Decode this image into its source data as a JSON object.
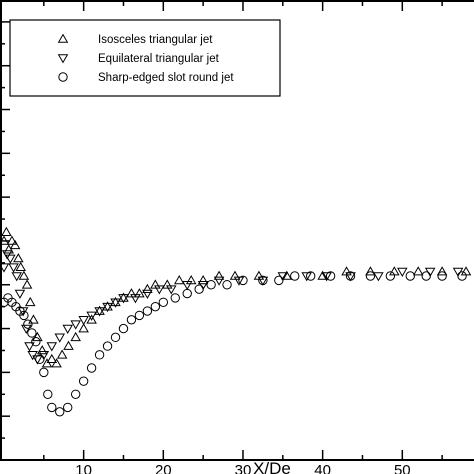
{
  "chart_data": {
    "type": "scatter",
    "title": "",
    "xlabel": "X/De",
    "ylabel": "",
    "xlim": [
      -0.5,
      59
    ],
    "ylim": [
      0,
      1.05
    ],
    "x_ticks": [
      10,
      20,
      30,
      40,
      50
    ],
    "grid": false,
    "legend_position": "top-left",
    "series": [
      {
        "name": "Isosceles triangular jet",
        "marker": "triangle-up",
        "points": [
          [
            0.0,
            0.5
          ],
          [
            0.3,
            0.52
          ],
          [
            0.6,
            0.48
          ],
          [
            1.0,
            0.5
          ],
          [
            1.4,
            0.49
          ],
          [
            1.8,
            0.46
          ],
          [
            2.1,
            0.44
          ],
          [
            2.5,
            0.42
          ],
          [
            2.9,
            0.4
          ],
          [
            3.3,
            0.36
          ],
          [
            3.7,
            0.32
          ],
          [
            4.2,
            0.28
          ],
          [
            4.8,
            0.25
          ],
          [
            5.4,
            0.22
          ],
          [
            6.0,
            0.23
          ],
          [
            6.6,
            0.22
          ],
          [
            7.3,
            0.24
          ],
          [
            8.1,
            0.26
          ],
          [
            9.0,
            0.28
          ],
          [
            10.0,
            0.3
          ],
          [
            11.0,
            0.32
          ],
          [
            12.0,
            0.34
          ],
          [
            13.0,
            0.35
          ],
          [
            14.0,
            0.36
          ],
          [
            15.0,
            0.37
          ],
          [
            16.0,
            0.38
          ],
          [
            17.0,
            0.38
          ],
          [
            18.0,
            0.39
          ],
          [
            19.0,
            0.4
          ],
          [
            20.5,
            0.4
          ],
          [
            22.0,
            0.41
          ],
          [
            23.5,
            0.41
          ],
          [
            25.0,
            0.41
          ],
          [
            27.0,
            0.42
          ],
          [
            29.0,
            0.42
          ],
          [
            32.0,
            0.42
          ],
          [
            35.5,
            0.42
          ],
          [
            40.0,
            0.42
          ],
          [
            43.0,
            0.43
          ],
          [
            46.0,
            0.43
          ],
          [
            49.0,
            0.43
          ],
          [
            52.0,
            0.43
          ],
          [
            55.0,
            0.43
          ],
          [
            58.0,
            0.43
          ]
        ]
      },
      {
        "name": "Equilateral triangular jet",
        "marker": "triangle-down",
        "points": [
          [
            0.0,
            0.44
          ],
          [
            0.4,
            0.47
          ],
          [
            0.8,
            0.46
          ],
          [
            1.2,
            0.44
          ],
          [
            1.6,
            0.42
          ],
          [
            2.0,
            0.38
          ],
          [
            2.4,
            0.34
          ],
          [
            2.8,
            0.3
          ],
          [
            3.2,
            0.26
          ],
          [
            3.6,
            0.24
          ],
          [
            4.2,
            0.23
          ],
          [
            5.0,
            0.24
          ],
          [
            6.0,
            0.26
          ],
          [
            7.0,
            0.28
          ],
          [
            8.0,
            0.3
          ],
          [
            9.0,
            0.31
          ],
          [
            10.0,
            0.32
          ],
          [
            11.0,
            0.33
          ],
          [
            12.0,
            0.34
          ],
          [
            13.0,
            0.35
          ],
          [
            14.0,
            0.36
          ],
          [
            15.0,
            0.37
          ],
          [
            16.5,
            0.37
          ],
          [
            18.0,
            0.38
          ],
          [
            19.5,
            0.39
          ],
          [
            21.0,
            0.39
          ],
          [
            23.0,
            0.4
          ],
          [
            25.0,
            0.4
          ],
          [
            27.0,
            0.41
          ],
          [
            29.5,
            0.41
          ],
          [
            32.5,
            0.41
          ],
          [
            35.0,
            0.42
          ],
          [
            38.0,
            0.42
          ],
          [
            40.5,
            0.42
          ],
          [
            43.5,
            0.42
          ],
          [
            47.0,
            0.42
          ],
          [
            50.0,
            0.43
          ],
          [
            53.5,
            0.43
          ],
          [
            57.0,
            0.43
          ]
        ]
      },
      {
        "name": "Sharp-edged slot round jet",
        "marker": "circle",
        "points": [
          [
            0.0,
            0.36
          ],
          [
            0.5,
            0.37
          ],
          [
            1.0,
            0.36
          ],
          [
            1.5,
            0.35
          ],
          [
            2.0,
            0.34
          ],
          [
            2.5,
            0.33
          ],
          [
            3.0,
            0.31
          ],
          [
            3.5,
            0.29
          ],
          [
            4.0,
            0.27
          ],
          [
            4.5,
            0.23
          ],
          [
            5.0,
            0.2
          ],
          [
            5.5,
            0.15
          ],
          [
            6.0,
            0.12
          ],
          [
            7.0,
            0.11
          ],
          [
            8.0,
            0.12
          ],
          [
            9.0,
            0.15
          ],
          [
            10.0,
            0.18
          ],
          [
            11.0,
            0.21
          ],
          [
            12.0,
            0.24
          ],
          [
            13.0,
            0.26
          ],
          [
            14.0,
            0.28
          ],
          [
            15.0,
            0.3
          ],
          [
            16.0,
            0.32
          ],
          [
            17.0,
            0.33
          ],
          [
            18.0,
            0.34
          ],
          [
            19.0,
            0.35
          ],
          [
            20.0,
            0.36
          ],
          [
            21.5,
            0.37
          ],
          [
            23.0,
            0.38
          ],
          [
            24.5,
            0.39
          ],
          [
            26.0,
            0.4
          ],
          [
            28.0,
            0.4
          ],
          [
            30.0,
            0.41
          ],
          [
            32.5,
            0.41
          ],
          [
            34.5,
            0.41
          ],
          [
            36.5,
            0.42
          ],
          [
            38.5,
            0.42
          ],
          [
            41.0,
            0.42
          ],
          [
            43.5,
            0.42
          ],
          [
            46.0,
            0.42
          ],
          [
            48.5,
            0.42
          ],
          [
            51.0,
            0.42
          ],
          [
            53.0,
            0.42
          ],
          [
            55.0,
            0.42
          ],
          [
            57.5,
            0.42
          ]
        ]
      }
    ]
  }
}
